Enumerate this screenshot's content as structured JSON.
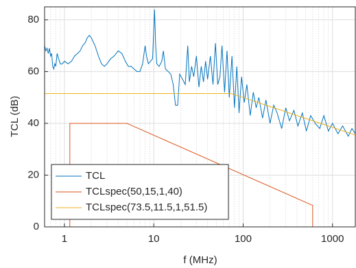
{
  "chart_data": {
    "type": "line",
    "xlabel": "f (MHz)",
    "ylabel": "TCL (dB)",
    "xscale": "log",
    "grid": true,
    "legend": "lower left",
    "xlim": [
      0.6,
      1800
    ],
    "ylim": [
      0,
      85
    ],
    "xticks": [
      1,
      10,
      100,
      1000
    ],
    "xminorticks": [
      0.7,
      0.8,
      0.9,
      2,
      3,
      4,
      5,
      6,
      7,
      8,
      9,
      20,
      30,
      40,
      50,
      60,
      70,
      80,
      90,
      200,
      300,
      400,
      500,
      600,
      700,
      800,
      900
    ],
    "yticks": [
      0,
      20,
      40,
      60,
      80
    ],
    "series": [
      {
        "name": "TCL",
        "color": "#0072BD",
        "x": [
          0.6,
          0.62,
          0.64,
          0.66,
          0.68,
          0.7,
          0.72,
          0.74,
          0.76,
          0.78,
          0.8,
          0.83,
          0.86,
          0.9,
          0.95,
          1.0,
          1.1,
          1.2,
          1.3,
          1.4,
          1.5,
          1.6,
          1.7,
          1.8,
          1.9,
          2.0,
          2.2,
          2.4,
          2.6,
          2.8,
          3.0,
          3.3,
          3.6,
          4.0,
          4.4,
          4.8,
          5.2,
          5.6,
          6.0,
          6.5,
          7.0,
          7.5,
          8.0,
          8.3,
          8.7,
          9.2,
          9.7,
          10.2,
          10.5,
          10.8,
          11.5,
          12.3,
          12.8,
          13.5,
          14.5,
          15.5,
          16.5,
          17.5,
          18.5,
          19.5,
          21,
          22.5,
          24,
          25,
          26.5,
          28,
          30,
          32,
          34,
          36,
          38,
          40,
          43,
          46,
          49,
          52,
          55,
          58,
          62,
          66,
          70,
          75,
          80,
          85,
          90,
          96,
          103,
          110,
          120,
          130,
          140,
          150,
          165,
          180,
          200,
          220,
          240,
          270,
          300,
          330,
          370,
          410,
          460,
          510,
          570,
          640,
          720,
          800,
          900,
          1000,
          1150,
          1300,
          1500,
          1650,
          1800
        ],
        "values": [
          70,
          68,
          69,
          67,
          69,
          66,
          67,
          62,
          61,
          63,
          62,
          67,
          65,
          63,
          63,
          64,
          63,
          64,
          66,
          67,
          68,
          70,
          71,
          73,
          74,
          73,
          70,
          66,
          63,
          62,
          63,
          65,
          66,
          68,
          67,
          64,
          62,
          62,
          61,
          60,
          60,
          63,
          70,
          66,
          63,
          64,
          65,
          84,
          70,
          63,
          62,
          64,
          68,
          61,
          60,
          59,
          55,
          47,
          47,
          59,
          57,
          55,
          70,
          56,
          62,
          58,
          66,
          54,
          62,
          56,
          64,
          57,
          66,
          55,
          71,
          55,
          58,
          70,
          52,
          68,
          50,
          66,
          46,
          62,
          44,
          58,
          48,
          55,
          43,
          52,
          46,
          50,
          42,
          49,
          40,
          47,
          44,
          38,
          46,
          41,
          45,
          39,
          44,
          37,
          43,
          40,
          38,
          43,
          37,
          40,
          36,
          39,
          35,
          38,
          36
        ]
      },
      {
        "name": "TCLspec(50,15,1,40)",
        "color": "#D95319",
        "x": [
          1.15,
          1.15,
          5,
          600,
          600
        ],
        "values": [
          0,
          40,
          40,
          8.3,
          0
        ]
      },
      {
        "name": "TCLspec(73.5,11.5,1,51.5)",
        "color": "#EDB120",
        "x": [
          0.6,
          73.5,
          1800
        ],
        "values": [
          51.5,
          51.5,
          35.5
        ]
      }
    ]
  }
}
